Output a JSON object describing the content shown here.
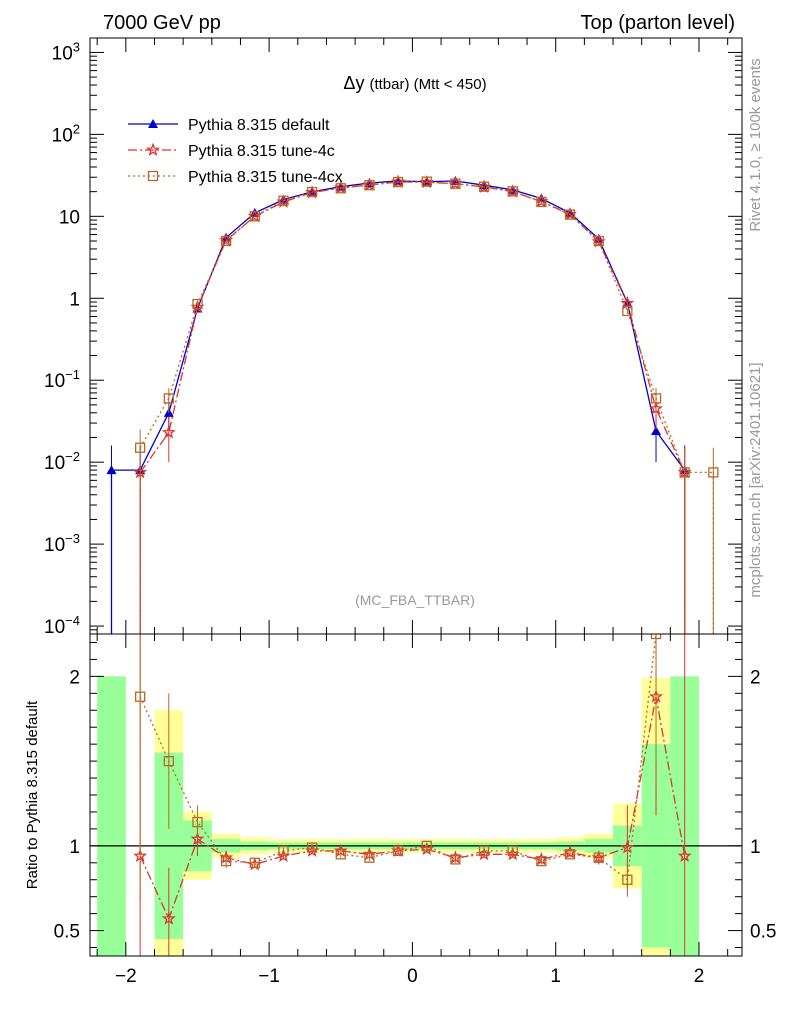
{
  "header": {
    "left": "7000 GeV pp",
    "right": "Top (parton level)"
  },
  "side": {
    "rivet": "Rivet 4.1.0, ≥ 100k events",
    "mcplots": "mcplots.cern.ch [arXiv:2401.10621]"
  },
  "colors": {
    "default": "#0000cc",
    "tune4c": "#dd3333",
    "tune4cx": "#bb6622",
    "band_inner": "#99ff99",
    "band_outer": "#ffff99"
  },
  "chart_data": [
    {
      "type": "line",
      "title": "Δy",
      "title_suffix": "(ttbar) (Mtt < 450)",
      "analysis": "(MC_FBA_TTBAR)",
      "yscale": "log",
      "xlim": [
        -2.25,
        2.3
      ],
      "ylim": [
        8e-05,
        1500
      ],
      "x_ticks": [
        -2,
        -1,
        0,
        1,
        2
      ],
      "y_ticks": [
        {
          "v": 0.0001,
          "m": "10",
          "e": "−4"
        },
        {
          "v": 0.001,
          "m": "10",
          "e": "−3"
        },
        {
          "v": 0.01,
          "m": "10",
          "e": "−2"
        },
        {
          "v": 0.1,
          "m": "10",
          "e": "−1"
        },
        {
          "v": 1,
          "m": "1",
          "e": ""
        },
        {
          "v": 10,
          "m": "10",
          "e": ""
        },
        {
          "v": 100,
          "m": "10",
          "e": "2"
        },
        {
          "v": 1000,
          "m": "10",
          "e": "3"
        }
      ],
      "series": [
        {
          "name": "Pythia 8.315 default",
          "key": "default",
          "marker": "triangle",
          "dash": "",
          "x": [
            -2.1,
            -1.9,
            -1.7,
            -1.5,
            -1.3,
            -1.1,
            -0.9,
            -0.7,
            -0.5,
            -0.3,
            -0.1,
            0.1,
            0.3,
            0.5,
            0.7,
            0.9,
            1.1,
            1.3,
            1.5,
            1.7,
            1.9
          ],
          "y": [
            0.008,
            0.008,
            0.04,
            0.75,
            5.5,
            11,
            16,
            20,
            23,
            25.5,
            27,
            26.5,
            27,
            24,
            21,
            16.5,
            11,
            5.3,
            0.88,
            0.024,
            0.008
          ],
          "err": [
            0.008,
            0.008,
            0.015,
            0.06,
            0.2,
            0.3,
            0.4,
            0.4,
            0.5,
            0.5,
            0.5,
            0.5,
            0.5,
            0.5,
            0.4,
            0.4,
            0.3,
            0.2,
            0.06,
            0.014,
            0.008
          ]
        },
        {
          "name": "Pythia 8.315 tune-4c",
          "key": "tune4c",
          "marker": "star",
          "dash": "9,3,2,3",
          "x": [
            -1.9,
            -1.7,
            -1.5,
            -1.3,
            -1.1,
            -0.9,
            -0.7,
            -0.5,
            -0.3,
            -0.1,
            0.1,
            0.3,
            0.5,
            0.7,
            0.9,
            1.1,
            1.3,
            1.5,
            1.7,
            1.9
          ],
          "y": [
            0.0075,
            0.023,
            0.78,
            5.1,
            10,
            15,
            19.5,
            22.3,
            24.2,
            26.3,
            26,
            25,
            22.8,
            20,
            15.2,
            10.6,
            4.9,
            0.87,
            0.045,
            0.0075
          ],
          "err": [
            0.0075,
            0.013,
            0.06,
            0.2,
            0.3,
            0.4,
            0.4,
            0.5,
            0.5,
            0.5,
            0.5,
            0.5,
            0.5,
            0.4,
            0.4,
            0.3,
            0.2,
            0.06,
            0.02,
            0.0075
          ]
        },
        {
          "name": "Pythia 8.315 tune-4cx",
          "key": "tune4cx",
          "marker": "square",
          "dash": "2,3",
          "x": [
            -1.9,
            -1.7,
            -1.5,
            -1.3,
            -1.1,
            -0.9,
            -0.7,
            -0.5,
            -0.3,
            -0.1,
            0.1,
            0.3,
            0.5,
            0.7,
            0.9,
            1.1,
            1.3,
            1.5,
            1.7,
            1.9,
            2.1
          ],
          "y": [
            0.015,
            0.06,
            0.85,
            5,
            10,
            15.5,
            19.8,
            22,
            24,
            26.2,
            26.5,
            25,
            23,
            20.2,
            15,
            10.5,
            5,
            0.7,
            0.06,
            0.0075,
            0.0075
          ],
          "err": [
            0.01,
            0.02,
            0.06,
            0.2,
            0.3,
            0.4,
            0.4,
            0.5,
            0.5,
            0.5,
            0.5,
            0.5,
            0.5,
            0.4,
            0.4,
            0.3,
            0.2,
            0.05,
            0.02,
            0.0075,
            0.0075
          ]
        }
      ]
    },
    {
      "type": "line",
      "ylabel": "Ratio to Pythia 8.315 default",
      "xlim": [
        -2.25,
        2.3
      ],
      "ylim": [
        0.35,
        2.25
      ],
      "x_ticks": [
        -2,
        -1,
        0,
        1,
        2
      ],
      "x_tick_labels": [
        "−2",
        "−1",
        "0",
        "1",
        "2"
      ],
      "y_ticks": [
        0.5,
        1,
        2
      ],
      "y_tick_labels": [
        "0.5",
        "1",
        "2"
      ],
      "band_edges": [
        -2.2,
        -1.8,
        -1.6,
        -1.4,
        -1.2,
        -1.0,
        -0.8,
        -0.6,
        -0.4,
        -0.2,
        0.0,
        0.2,
        0.4,
        0.6,
        0.8,
        1.0,
        1.2,
        1.4,
        1.6,
        1.8,
        2.0
      ],
      "band_inner": [
        1.0,
        0.55,
        0.15,
        0.04,
        0.025,
        0.02,
        0.02,
        0.02,
        0.02,
        0.02,
        0.02,
        0.02,
        0.02,
        0.02,
        0.02,
        0.025,
        0.04,
        0.12,
        0.6,
        1.0
      ],
      "band_outer": [
        1.0,
        0.8,
        0.2,
        0.07,
        0.05,
        0.04,
        0.04,
        0.04,
        0.04,
        0.04,
        0.04,
        0.04,
        0.04,
        0.04,
        0.04,
        0.05,
        0.07,
        0.25,
        0.99,
        1.0
      ],
      "series": [
        {
          "name": "tune-4c / default",
          "key": "tune4c",
          "marker": "star",
          "dash": "9,3,2,3",
          "x": [
            -1.9,
            -1.7,
            -1.5,
            -1.3,
            -1.1,
            -0.9,
            -0.7,
            -0.5,
            -0.3,
            -0.1,
            0.1,
            0.3,
            0.5,
            0.7,
            0.9,
            1.1,
            1.3,
            1.5,
            1.7,
            1.9
          ],
          "y": [
            0.94,
            0.57,
            1.04,
            0.93,
            0.89,
            0.94,
            0.97,
            0.97,
            0.95,
            0.97,
            0.98,
            0.93,
            0.95,
            0.95,
            0.92,
            0.96,
            0.93,
            0.99,
            1.88,
            0.94
          ],
          "err": [
            1.5,
            0.3,
            0.1,
            0.04,
            0.02,
            0.02,
            0.02,
            0.02,
            0.02,
            0.02,
            0.02,
            0.02,
            0.02,
            0.02,
            0.02,
            0.02,
            0.04,
            0.25,
            0.7,
            1.5
          ]
        },
        {
          "name": "tune-4cx / default",
          "key": "tune4cx",
          "marker": "square",
          "dash": "2,3",
          "x": [
            -1.9,
            -1.7,
            -1.5,
            -1.3,
            -1.1,
            -0.9,
            -0.7,
            -0.5,
            -0.3,
            -0.1,
            0.1,
            0.3,
            0.5,
            0.7,
            0.9,
            1.1,
            1.3,
            1.5,
            1.7
          ],
          "y": [
            1.88,
            1.5,
            1.14,
            0.91,
            0.9,
            0.97,
            0.99,
            0.95,
            0.93,
            0.97,
            1.0,
            0.92,
            0.97,
            0.97,
            0.91,
            0.95,
            0.93,
            0.8,
            2.5
          ],
          "err": [
            1.2,
            0.4,
            0.1,
            0.04,
            0.02,
            0.02,
            0.02,
            0.02,
            0.02,
            0.02,
            0.02,
            0.02,
            0.02,
            0.02,
            0.02,
            0.02,
            0.04,
            0.1,
            1.0
          ]
        }
      ]
    }
  ]
}
